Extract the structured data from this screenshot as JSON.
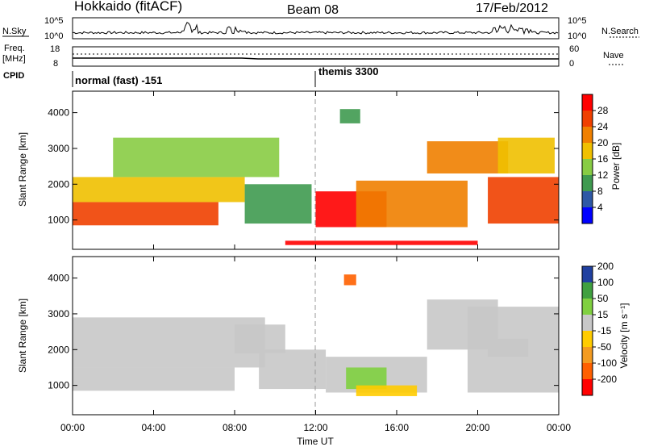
{
  "header": {
    "radar": "Hokkaido (fitACF)",
    "beam": "Beam 08",
    "date": "17/Feb/2012"
  },
  "strips": {
    "nsky": {
      "label": "N.Sky",
      "right_label": "N.Search",
      "tick_top": "10^5",
      "tick_bottom": "10^0"
    },
    "freq": {
      "label_line1": "Freq.",
      "label_line2": "[MHz]",
      "right_label": "Nave",
      "ticks_left": [
        "18",
        "8"
      ],
      "ticks_right": [
        "60",
        "0"
      ]
    },
    "cpid": {
      "label": "CPID",
      "modes": [
        "normal (fast) -151",
        "themis 3300"
      ]
    }
  },
  "colors": {
    "power_scale": [
      "#0000ff",
      "#2e58a6",
      "#3f9a50",
      "#88cc44",
      "#f0c000",
      "#f08000",
      "#f04000",
      "#ff0000"
    ],
    "velocity_scale": [
      "#ff0000",
      "#ff6000",
      "#f39b20",
      "#ffcc00",
      "#c8c8c8",
      "#80d040",
      "#40a040",
      "#2040a0"
    ],
    "ground_scatter": "#c8c8c8"
  },
  "chart_data": [
    {
      "type": "heatmap",
      "title": "Power",
      "ylabel": "Slant Range [km]",
      "xlabel": "Time UT",
      "x_ticks": [
        "00:00",
        "04:00",
        "08:00",
        "12:00",
        "16:00",
        "20:00",
        "00:00"
      ],
      "y_ticks": [
        "1000",
        "2000",
        "3000",
        "4000"
      ],
      "ylim": [
        180,
        4600
      ],
      "xlim_hours": [
        0,
        24
      ],
      "colorbar": {
        "label": "Power [dB]",
        "ticks": [
          "4",
          "8",
          "12",
          "16",
          "20",
          "24",
          "28"
        ],
        "range": [
          0,
          32
        ]
      },
      "mode_change_hour": 12,
      "regions": [
        {
          "t0": 0.0,
          "t1": 7.2,
          "r0": 850,
          "r1": 1500,
          "value": 26
        },
        {
          "t0": 0.0,
          "t1": 8.5,
          "r0": 1500,
          "r1": 2200,
          "value": 18
        },
        {
          "t0": 2.0,
          "t1": 10.2,
          "r0": 2200,
          "r1": 3300,
          "value": 14
        },
        {
          "t0": 8.5,
          "t1": 11.8,
          "r0": 900,
          "r1": 2000,
          "value": 10
        },
        {
          "t0": 10.5,
          "t1": 20.0,
          "r0": 300,
          "r1": 420,
          "value": 28
        },
        {
          "t0": 12.0,
          "t1": 15.5,
          "r0": 800,
          "r1": 1800,
          "value": 28
        },
        {
          "t0": 14.0,
          "t1": 19.5,
          "r0": 800,
          "r1": 2100,
          "value": 22
        },
        {
          "t0": 13.2,
          "t1": 14.2,
          "r0": 3700,
          "r1": 4100,
          "value": 10
        },
        {
          "t0": 17.5,
          "t1": 21.5,
          "r0": 2300,
          "r1": 3200,
          "value": 22
        },
        {
          "t0": 20.5,
          "t1": 24.0,
          "r0": 900,
          "r1": 2200,
          "value": 26
        },
        {
          "t0": 21.0,
          "t1": 23.8,
          "r0": 2300,
          "r1": 3300,
          "value": 18
        }
      ]
    },
    {
      "type": "heatmap",
      "title": "Velocity",
      "ylabel": "Slant Range [km]",
      "xlabel": "Time UT",
      "x_ticks": [
        "00:00",
        "04:00",
        "08:00",
        "12:00",
        "16:00",
        "20:00",
        "00:00"
      ],
      "y_ticks": [
        "1000",
        "2000",
        "3000",
        "4000"
      ],
      "ylim": [
        180,
        4600
      ],
      "xlim_hours": [
        0,
        24
      ],
      "colorbar": {
        "label": "Velocity [m s⁻¹]",
        "ticks": [
          "-200",
          "-100",
          "-50",
          "-15",
          "15",
          "50",
          "100",
          "200"
        ],
        "range": [
          -250,
          250
        ]
      },
      "mode_change_hour": 12,
      "regions": [
        {
          "t0": 0.0,
          "t1": 8.0,
          "r0": 850,
          "r1": 1500,
          "value": 0
        },
        {
          "t0": 0.0,
          "t1": 9.5,
          "r0": 1500,
          "r1": 2900,
          "value": 0
        },
        {
          "t0": 8.0,
          "t1": 10.5,
          "r0": 1900,
          "r1": 2700,
          "value": 0
        },
        {
          "t0": 9.2,
          "t1": 12.5,
          "r0": 900,
          "r1": 2000,
          "value": 40
        },
        {
          "t0": 12.5,
          "t1": 17.5,
          "r0": 800,
          "r1": 1800,
          "value": 40
        },
        {
          "t0": 13.5,
          "t1": 15.5,
          "r0": 900,
          "r1": 1500,
          "value": 120
        },
        {
          "t0": 14.0,
          "t1": 17.0,
          "r0": 700,
          "r1": 1000,
          "value": -60
        },
        {
          "t0": 13.4,
          "t1": 14.0,
          "r0": 3800,
          "r1": 4100,
          "value": -150
        },
        {
          "t0": 17.5,
          "t1": 21.0,
          "r0": 2000,
          "r1": 3400,
          "value": 40
        },
        {
          "t0": 19.5,
          "t1": 24.0,
          "r0": 800,
          "r1": 3200,
          "value": 0
        },
        {
          "t0": 20.5,
          "t1": 22.5,
          "r0": 1800,
          "r1": 2300,
          "value": 40
        }
      ]
    }
  ]
}
